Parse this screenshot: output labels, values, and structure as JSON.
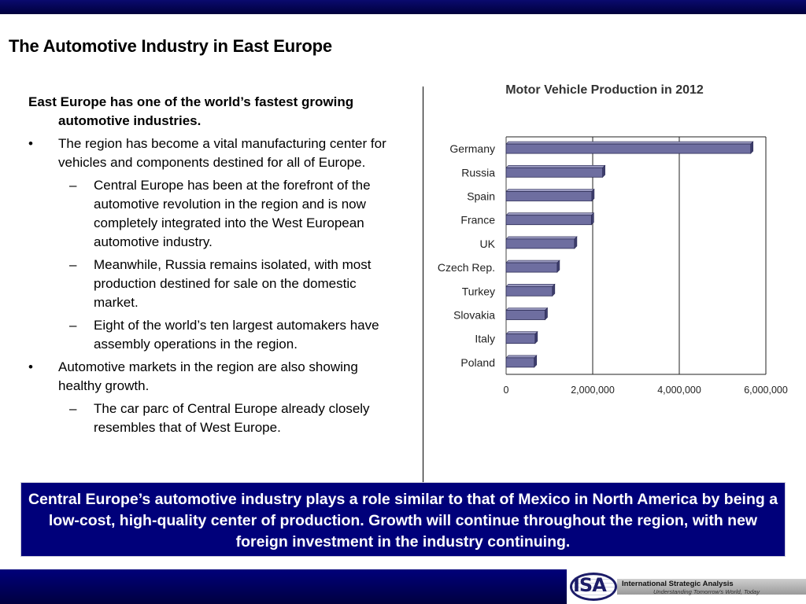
{
  "slide": {
    "title": "The Automotive Industry in East Europe",
    "intro": "East Europe has one of the world’s fastest growing automotive industries.",
    "bullet_mark": "•",
    "dash_mark": "–",
    "bullets": [
      {
        "text": "The region has become a vital manufacturing center for vehicles and components destined for all of Europe.",
        "subs": [
          "Central Europe has been at the forefront of the automotive revolution in the region and is now completely integrated into the West European automotive industry.",
          "Meanwhile, Russia remains isolated, with most production destined for sale on the domestic market.",
          "Eight of the world’s ten largest automakers have assembly operations in the region."
        ]
      },
      {
        "text": "Automotive markets in the region are also showing healthy growth.",
        "subs": [
          "The car parc of Central Europe already closely resembles that of West Europe."
        ]
      }
    ],
    "callout": "Central Europe’s automotive industry plays a role similar to that of Mexico in North America by being a low-cost, high-quality center of production.  Growth will continue throughout the region, with new foreign investment in the industry continuing."
  },
  "footer": {
    "logo_text": "ISA",
    "company": "International Strategic Analysis",
    "tagline": "Understanding Tomorrow's World, Today"
  },
  "colors": {
    "bar_fill": "#6e6ea0",
    "bar_edge": "#2c2c55",
    "navy": "#00007a"
  },
  "chart_data": {
    "type": "bar",
    "orientation": "horizontal",
    "title": "Motor Vehicle Production in 2012",
    "categories": [
      "Germany",
      "Russia",
      "Spain",
      "France",
      "UK",
      "Czech Rep.",
      "Turkey",
      "Slovakia",
      "Italy",
      "Poland"
    ],
    "values": [
      5650000,
      2230000,
      1980000,
      1970000,
      1580000,
      1180000,
      1070000,
      900000,
      670000,
      650000
    ],
    "xlim": [
      0,
      6000000
    ],
    "xticks": [
      "0",
      "2,000,000",
      "4,000,000",
      "6,000,000"
    ],
    "grid": "vertical",
    "legend": "none"
  }
}
